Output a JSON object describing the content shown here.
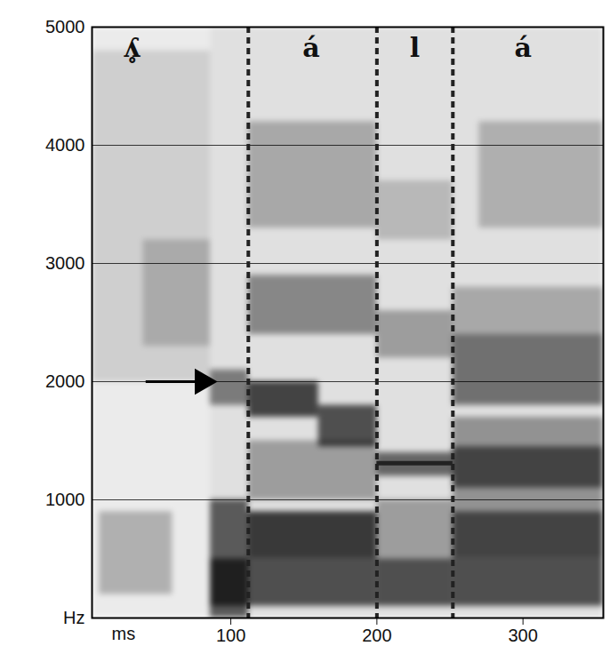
{
  "chart_data": {
    "type": "spectrogram",
    "x_label": "ms",
    "xlim": [
      5,
      355
    ],
    "xticks": [
      100,
      200,
      300
    ],
    "ylim": [
      0,
      5000
    ],
    "yticks": [
      {
        "value": 0,
        "label": "Hz"
      },
      1000,
      2000,
      3000,
      4000,
      5000
    ],
    "grid": true,
    "segments": {
      "labels": [
        "ʎ̥",
        "á",
        "l",
        "á"
      ],
      "x": [
        32,
        155,
        226,
        300
      ],
      "y": 4820,
      "boundaries": [
        112,
        200,
        252
      ]
    },
    "arrow": {
      "x1": 42,
      "x2": 86,
      "y": 2000
    },
    "marker_line": {
      "x1": 200,
      "x2": 252,
      "y": 1310
    },
    "cells": [
      {
        "x1": 5,
        "x2": 86,
        "y1": 0,
        "y2": 5000,
        "level": 0.08
      },
      {
        "x1": 10,
        "x2": 60,
        "y1": 200,
        "y2": 900,
        "level": 0.25
      },
      {
        "x1": 5,
        "x2": 86,
        "y1": 2000,
        "y2": 4800,
        "level": 0.12
      },
      {
        "x1": 40,
        "x2": 86,
        "y1": 2300,
        "y2": 3200,
        "level": 0.18
      },
      {
        "x1": 86,
        "x2": 355,
        "y1": 0,
        "y2": 5000,
        "level": 0.12
      },
      {
        "x1": 86,
        "x2": 112,
        "y1": 0,
        "y2": 1000,
        "level": 0.6
      },
      {
        "x1": 86,
        "x2": 112,
        "y1": 1800,
        "y2": 2100,
        "level": 0.45
      },
      {
        "x1": 86,
        "x2": 200,
        "y1": 100,
        "y2": 500,
        "level": 0.65
      },
      {
        "x1": 112,
        "x2": 200,
        "y1": 500,
        "y2": 900,
        "level": 0.75
      },
      {
        "x1": 112,
        "x2": 160,
        "y1": 1700,
        "y2": 2000,
        "level": 0.7
      },
      {
        "x1": 160,
        "x2": 200,
        "y1": 1450,
        "y2": 1800,
        "level": 0.65
      },
      {
        "x1": 112,
        "x2": 200,
        "y1": 2400,
        "y2": 2900,
        "level": 0.4
      },
      {
        "x1": 112,
        "x2": 200,
        "y1": 3300,
        "y2": 4200,
        "level": 0.25
      },
      {
        "x1": 112,
        "x2": 200,
        "y1": 1000,
        "y2": 1500,
        "level": 0.3
      },
      {
        "x1": 200,
        "x2": 252,
        "y1": 100,
        "y2": 500,
        "level": 0.65
      },
      {
        "x1": 200,
        "x2": 252,
        "y1": 500,
        "y2": 1000,
        "level": 0.3
      },
      {
        "x1": 200,
        "x2": 252,
        "y1": 1200,
        "y2": 1400,
        "level": 0.55
      },
      {
        "x1": 200,
        "x2": 252,
        "y1": 2200,
        "y2": 2600,
        "level": 0.3
      },
      {
        "x1": 200,
        "x2": 252,
        "y1": 3200,
        "y2": 3700,
        "level": 0.18
      },
      {
        "x1": 252,
        "x2": 355,
        "y1": 100,
        "y2": 500,
        "level": 0.65
      },
      {
        "x1": 252,
        "x2": 355,
        "y1": 500,
        "y2": 900,
        "level": 0.7
      },
      {
        "x1": 252,
        "x2": 355,
        "y1": 900,
        "y2": 1100,
        "level": 0.35
      },
      {
        "x1": 252,
        "x2": 355,
        "y1": 1100,
        "y2": 1450,
        "level": 0.7
      },
      {
        "x1": 252,
        "x2": 355,
        "y1": 1450,
        "y2": 1700,
        "level": 0.35
      },
      {
        "x1": 252,
        "x2": 355,
        "y1": 1800,
        "y2": 2400,
        "level": 0.5
      },
      {
        "x1": 252,
        "x2": 355,
        "y1": 2400,
        "y2": 2800,
        "level": 0.25
      },
      {
        "x1": 270,
        "x2": 355,
        "y1": 3300,
        "y2": 4200,
        "level": 0.22
      }
    ]
  }
}
